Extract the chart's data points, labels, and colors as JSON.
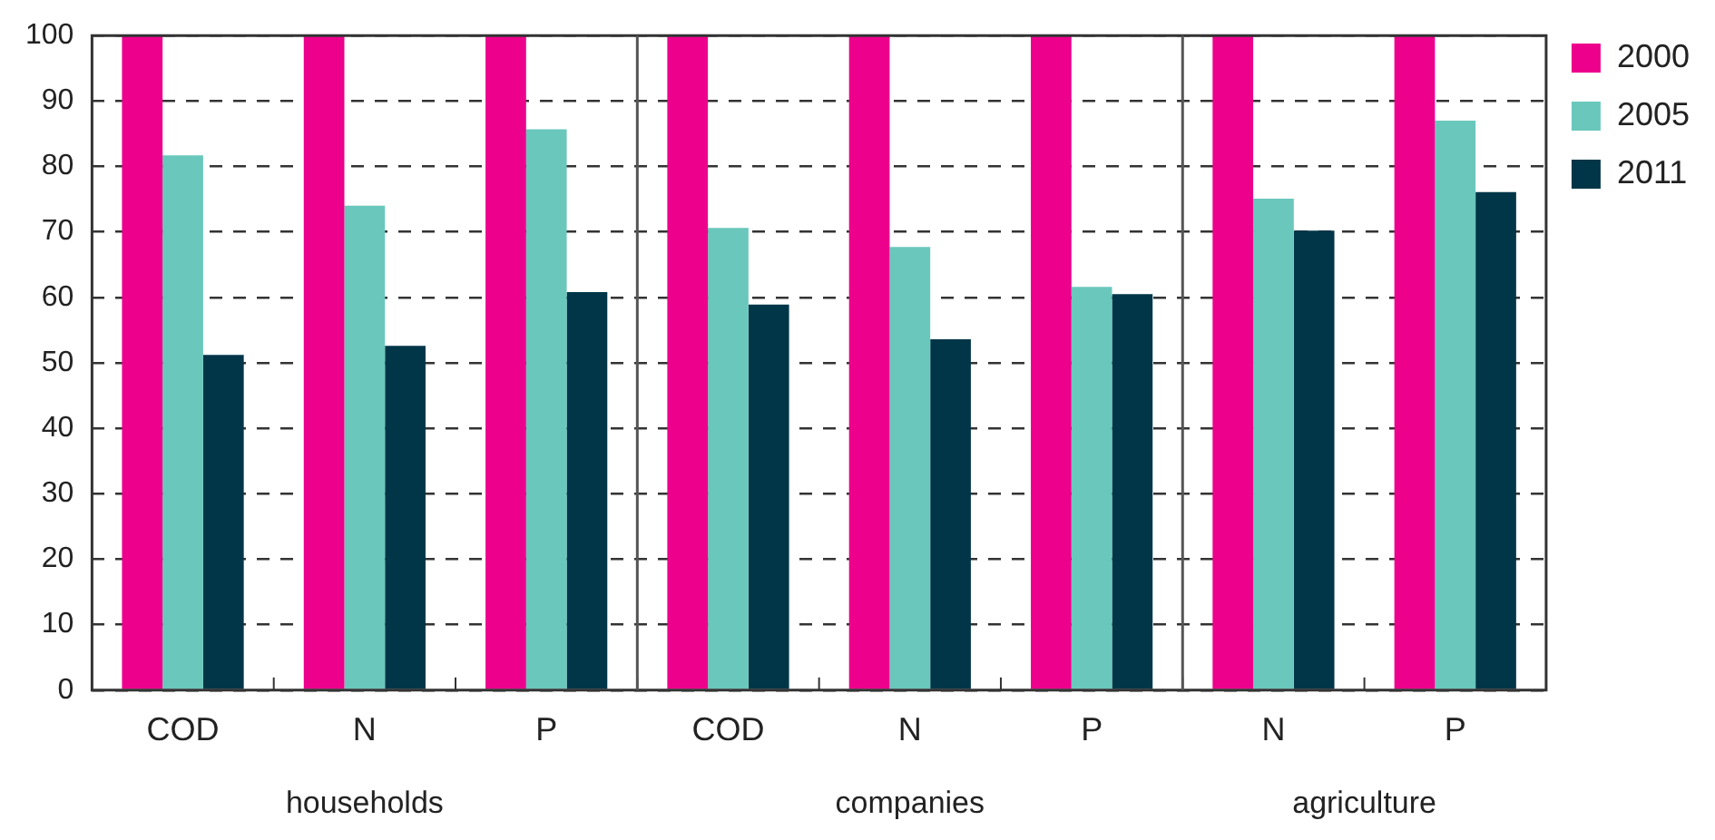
{
  "chart_data": {
    "type": "bar",
    "categories": [
      "COD",
      "N",
      "P",
      "COD",
      "N",
      "P",
      "N",
      "P"
    ],
    "series": [
      {
        "name": "2000",
        "color": "#ec008c",
        "values": [
          100,
          100,
          100,
          100,
          100,
          100,
          100,
          100
        ]
      },
      {
        "name": "2005",
        "color": "#6ac7bc",
        "values": [
          81.7,
          74,
          85.7,
          70.6,
          67.7,
          61.6,
          75.1,
          87
        ]
      },
      {
        "name": "2011",
        "color": "#003648",
        "values": [
          51.2,
          52.6,
          60.8,
          58.9,
          53.6,
          60.5,
          70.2,
          76.1
        ]
      }
    ],
    "ylim": [
      0,
      100
    ],
    "yticks": [
      0,
      10,
      20,
      30,
      40,
      50,
      60,
      70,
      80,
      90,
      100
    ],
    "grid": "y",
    "legend": "right",
    "annotations": [
      "households",
      "companies",
      "agriculture"
    ]
  }
}
